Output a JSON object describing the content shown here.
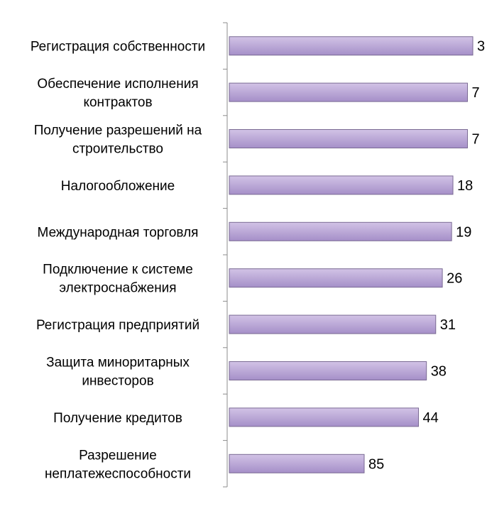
{
  "chart_data": {
    "type": "bar",
    "orientation": "horizontal",
    "categories": [
      [
        "Регистрация собственности"
      ],
      [
        "Обеспечение исполнения",
        "контрактов"
      ],
      [
        "Получение разрешений на",
        "строительство"
      ],
      [
        "Налогообложение"
      ],
      [
        "Международная торговля"
      ],
      [
        "Подключение к системе",
        "электроснабжения"
      ],
      [
        "Регистрация предприятий"
      ],
      [
        "Защита миноритарных",
        "инвесторов"
      ],
      [
        "Получение кредитов"
      ],
      [
        "Разрешение",
        "неплатежеспособности"
      ]
    ],
    "values": [
      3,
      7,
      7,
      18,
      19,
      26,
      31,
      38,
      44,
      85
    ],
    "value_labels": [
      "3",
      "7",
      "7",
      "18",
      "19",
      "26",
      "31",
      "38",
      "44",
      "85"
    ],
    "title": "",
    "xlabel": "",
    "ylabel": "",
    "grid": false,
    "legend": "none",
    "colors": {
      "bar_fill_top": "#d2c3e6",
      "bar_fill_bottom": "#a58fc8",
      "bar_stroke": "#7a6a93",
      "axis": "#8c8c8c"
    }
  }
}
